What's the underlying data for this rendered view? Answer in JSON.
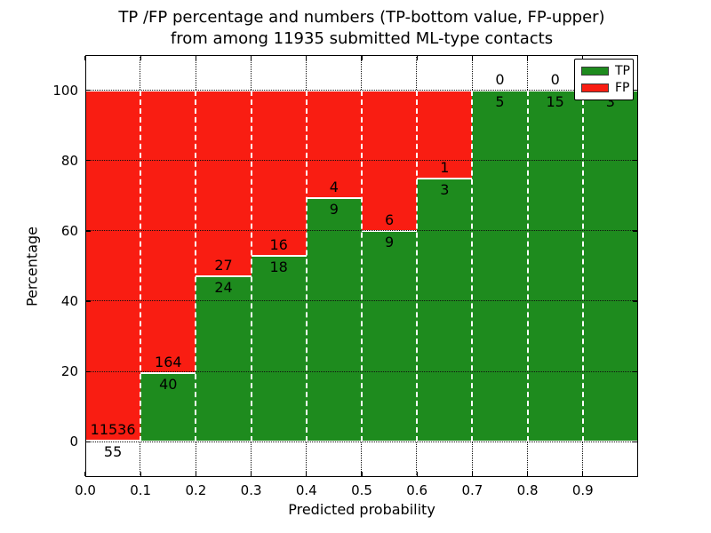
{
  "title": {
    "line1": "TP /FP percentage and numbers (TP-bottom value, FP-upper)",
    "line2": "from among 11935 submitted ML-type contacts"
  },
  "chart_data": {
    "type": "bar",
    "stacked": true,
    "title": "TP /FP percentage and numbers (TP-bottom value, FP-upper) from among 11935 submitted ML-type contacts",
    "xlabel": "Predicted probability",
    "ylabel": "Percentage",
    "xlim": [
      0.0,
      1.0
    ],
    "ylim": [
      -10,
      110
    ],
    "bin_width": 0.1,
    "x_tick_values": [
      0.0,
      0.1,
      0.2,
      0.3,
      0.4,
      0.5,
      0.6,
      0.7,
      0.8,
      0.9
    ],
    "x_tick_labels": [
      "0.0",
      "0.1",
      "0.2",
      "0.3",
      "0.4",
      "0.5",
      "0.6",
      "0.7",
      "0.8",
      "0.9"
    ],
    "y_tick_values": [
      0,
      20,
      40,
      60,
      80,
      100
    ],
    "y_tick_labels": [
      "0",
      "20",
      "40",
      "60",
      "80",
      "100"
    ],
    "grid": {
      "linestyle": "dotted",
      "color": "#000000"
    },
    "bar_edge": {
      "linestyle": "dashed",
      "color": "#ffffff"
    },
    "categories": [
      "0.0-0.1",
      "0.1-0.2",
      "0.2-0.3",
      "0.3-0.4",
      "0.4-0.5",
      "0.5-0.6",
      "0.6-0.7",
      "0.7-0.8",
      "0.8-0.9",
      "0.9-1.0"
    ],
    "series": [
      {
        "name": "TP",
        "color": "#1e8b1e",
        "counts": [
          55,
          40,
          24,
          18,
          9,
          9,
          3,
          5,
          15,
          3
        ]
      },
      {
        "name": "FP",
        "color": "#f91d12",
        "counts": [
          11536,
          164,
          27,
          16,
          4,
          6,
          1,
          0,
          0,
          0
        ]
      }
    ],
    "tp_percent": [
      0.47,
      19.61,
      47.06,
      52.94,
      69.23,
      60.0,
      75.0,
      100.0,
      100.0,
      100.0
    ],
    "legend": {
      "entries": [
        "TP",
        "FP"
      ],
      "position": "upper right"
    }
  }
}
